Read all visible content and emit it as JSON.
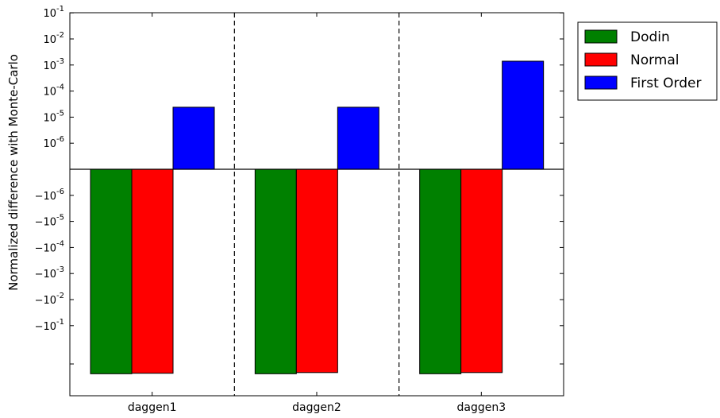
{
  "chart_data": {
    "type": "bar",
    "title": "",
    "xlabel": "",
    "ylabel": "Normalized difference with Monte-Carlo",
    "y_scale": "symlog",
    "categories": [
      "daggen1",
      "daggen2",
      "daggen3"
    ],
    "series": [
      {
        "name": "Dodin",
        "color": "#008000",
        "values": [
          -7,
          -7,
          -7
        ]
      },
      {
        "name": "Normal",
        "color": "#ff0000",
        "values": [
          -6.7,
          -6.3,
          -6.3
        ]
      },
      {
        "name": "First Order",
        "color": "#0000ff",
        "values": [
          2.4e-05,
          2.4e-05,
          0.0014
        ]
      }
    ],
    "y_ticks": [
      {
        "label": "10",
        "exp": "-1"
      },
      {
        "label": "10",
        "exp": "-2"
      },
      {
        "label": "10",
        "exp": "-3"
      },
      {
        "label": "10",
        "exp": "-4"
      },
      {
        "label": "10",
        "exp": "-5"
      },
      {
        "label": "10",
        "exp": "-6"
      },
      {
        "label": "−10",
        "exp": "-6"
      },
      {
        "label": "−10",
        "exp": "-5"
      },
      {
        "label": "−10",
        "exp": "-4"
      },
      {
        "label": "−10",
        "exp": "-3"
      },
      {
        "label": "−10",
        "exp": "-2"
      },
      {
        "label": "−10",
        "exp": "-1"
      }
    ],
    "legend_position": "outside top-right",
    "category_separators": "dashed",
    "zero_line": true,
    "grid": false
  }
}
